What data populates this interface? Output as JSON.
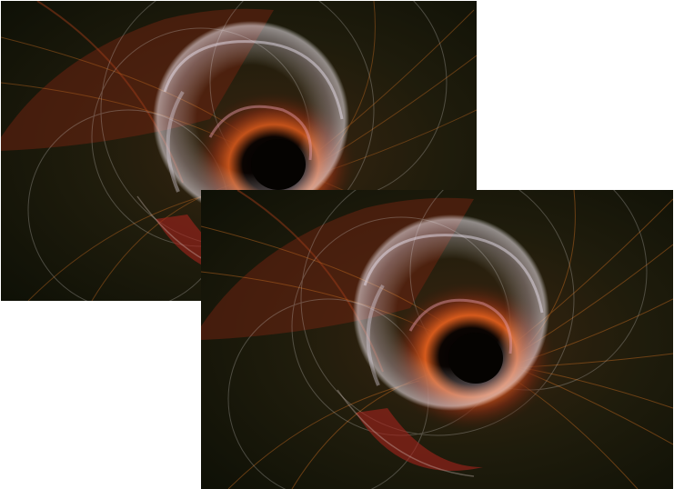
{
  "images": [
    {
      "id": "back",
      "subject": "fractal-flame-swirl",
      "colors": {
        "background": "#1c1a0c",
        "ring": "#d9d3d6",
        "glow": "#e0641e",
        "ember": "#a5231c",
        "core": "#070402",
        "strand": "#b9651f"
      }
    },
    {
      "id": "front",
      "subject": "fractal-flame-swirl",
      "colors": {
        "background": "#1c1a0c",
        "ring": "#d9d3d6",
        "glow": "#e0641e",
        "ember": "#a5231c",
        "core": "#070402",
        "strand": "#b9651f"
      }
    }
  ]
}
